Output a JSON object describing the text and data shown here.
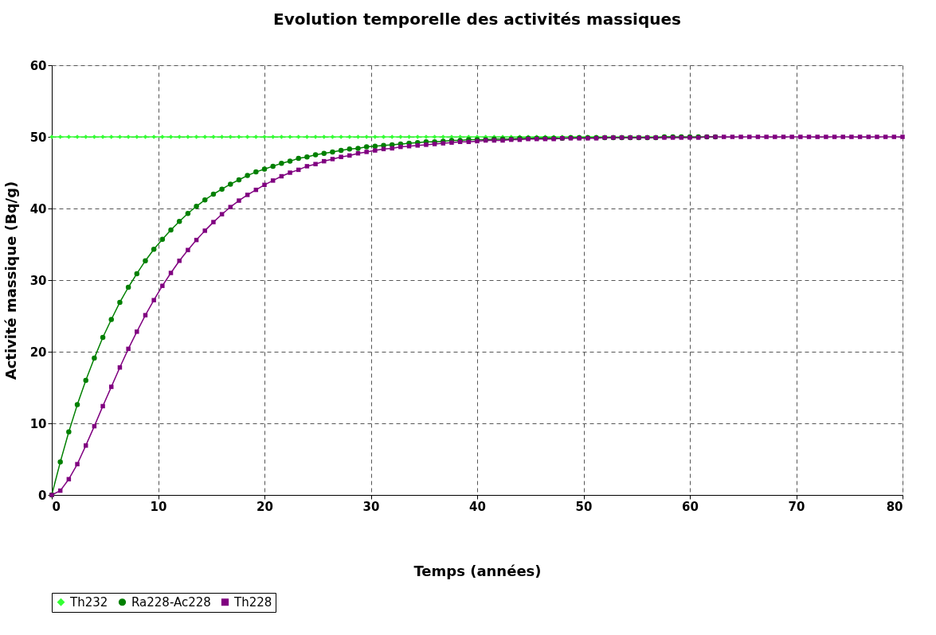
{
  "chart_data": {
    "type": "line",
    "title": "Evolution temporelle des activités massiques",
    "xlabel": "Temps (années)",
    "ylabel": "Activité massique (Bq/g)",
    "x": [
      0,
      0.8,
      1.6,
      2.4,
      3.2,
      4,
      4.8,
      5.6,
      6.4,
      7.2,
      8,
      8.8,
      9.6,
      10.4,
      11.2,
      12,
      12.8,
      13.6,
      14.4,
      15.2,
      16,
      16.8,
      17.6,
      18.4,
      19.2,
      20,
      20.8,
      21.6,
      22.4,
      23.2,
      24,
      24.8,
      25.6,
      26.4,
      27.2,
      28,
      28.8,
      29.6,
      30.4,
      31.2,
      32,
      32.8,
      33.6,
      34.4,
      35.2,
      36,
      36.8,
      37.6,
      38.4,
      39.2,
      40,
      40.8,
      41.6,
      42.4,
      43.2,
      44,
      44.8,
      45.6,
      46.4,
      47.2,
      48,
      48.8,
      49.6,
      50.4,
      51.2,
      52,
      52.8,
      53.6,
      54.4,
      55.2,
      56,
      56.8,
      57.6,
      58.4,
      59.2,
      60,
      60.8,
      61.6,
      62.4,
      63.2,
      64,
      64.8,
      65.6,
      66.4,
      67.2,
      68,
      68.8,
      69.6,
      70.4,
      71.2,
      72,
      72.8,
      73.6,
      74.4,
      75.2,
      76,
      76.8,
      77.6,
      78.4,
      79.2,
      80
    ],
    "series": [
      {
        "name": "Th232",
        "color": "#33ff33",
        "marker": "diamond",
        "values": [
          50,
          50,
          50,
          50,
          50,
          50,
          50,
          50,
          50,
          50,
          50,
          50,
          50,
          50,
          50,
          50,
          50,
          50,
          50,
          50,
          50,
          50,
          50,
          50,
          50,
          50,
          50,
          50,
          50,
          50,
          50,
          50,
          50,
          50,
          50,
          50,
          50,
          50,
          50,
          50,
          50,
          50,
          50,
          50,
          50,
          50,
          50,
          50,
          50,
          50,
          50,
          50,
          50,
          50,
          50,
          50,
          50,
          50,
          50,
          50,
          50,
          50,
          50,
          50,
          50,
          50,
          50,
          50,
          50,
          50,
          50,
          50,
          50,
          50,
          null,
          null,
          null,
          null,
          null,
          null,
          null,
          null,
          null,
          null,
          null,
          null,
          null,
          null,
          null,
          null,
          null,
          null,
          null,
          null,
          null,
          null,
          null,
          null,
          null,
          null,
          null
        ]
      },
      {
        "name": "Ra228-Ac228",
        "color": "#008000",
        "marker": "circle",
        "values": [
          0,
          4.6,
          8.8,
          12.6,
          16.0,
          19.1,
          22.0,
          24.5,
          26.9,
          29.0,
          30.9,
          32.7,
          34.3,
          35.7,
          37.0,
          38.2,
          39.3,
          40.3,
          41.2,
          42.0,
          42.7,
          43.4,
          44.0,
          44.6,
          45.1,
          45.5,
          45.9,
          46.3,
          46.6,
          47.0,
          47.2,
          47.5,
          47.7,
          47.9,
          48.1,
          48.3,
          48.4,
          48.6,
          48.7,
          48.8,
          48.9,
          49.0,
          49.1,
          49.2,
          49.3,
          49.3,
          49.4,
          49.5,
          49.5,
          49.6,
          49.6,
          49.6,
          49.7,
          49.7,
          49.7,
          49.8,
          49.8,
          49.8,
          49.8,
          49.8,
          49.8,
          49.9,
          49.9,
          49.9,
          49.9,
          49.9,
          49.9,
          49.9,
          49.9,
          49.9,
          49.9,
          49.9,
          50,
          50,
          50,
          50,
          50,
          50,
          50,
          null,
          null,
          null,
          null,
          null,
          null,
          null,
          null,
          null,
          null,
          null,
          null,
          null,
          null,
          null,
          null,
          null,
          null,
          null,
          null,
          null,
          null
        ]
      },
      {
        "name": "Th228",
        "color": "#800080",
        "marker": "square",
        "values": [
          0,
          0.6,
          2.2,
          4.3,
          6.9,
          9.6,
          12.4,
          15.1,
          17.8,
          20.4,
          22.8,
          25.1,
          27.2,
          29.2,
          31.0,
          32.7,
          34.2,
          35.6,
          36.9,
          38.1,
          39.2,
          40.2,
          41.1,
          41.9,
          42.6,
          43.3,
          43.9,
          44.5,
          45.0,
          45.4,
          45.9,
          46.2,
          46.6,
          46.9,
          47.2,
          47.4,
          47.7,
          47.9,
          48.1,
          48.3,
          48.4,
          48.6,
          48.7,
          48.8,
          48.9,
          49.0,
          49.1,
          49.2,
          49.3,
          49.3,
          49.4,
          49.5,
          49.5,
          49.5,
          49.6,
          49.6,
          49.7,
          49.7,
          49.7,
          49.7,
          49.8,
          49.8,
          49.8,
          49.8,
          49.8,
          49.9,
          49.9,
          49.9,
          49.9,
          49.9,
          49.9,
          49.9,
          49.9,
          49.9,
          49.9,
          49.9,
          49.9,
          50,
          50,
          50,
          50,
          50,
          50,
          50,
          50,
          50,
          50,
          50,
          50,
          50,
          50,
          50,
          50,
          50,
          50,
          50,
          50,
          50,
          50,
          50,
          50
        ]
      }
    ],
    "xlim": [
      0,
      80
    ],
    "xticks": [
      0,
      10,
      20,
      30,
      40,
      50,
      60,
      70,
      80
    ],
    "ylim": [
      0,
      60
    ],
    "yticks": [
      0,
      10,
      20,
      30,
      40,
      50,
      60
    ],
    "grid": true,
    "legend": "bottom",
    "line_style": "solid"
  }
}
